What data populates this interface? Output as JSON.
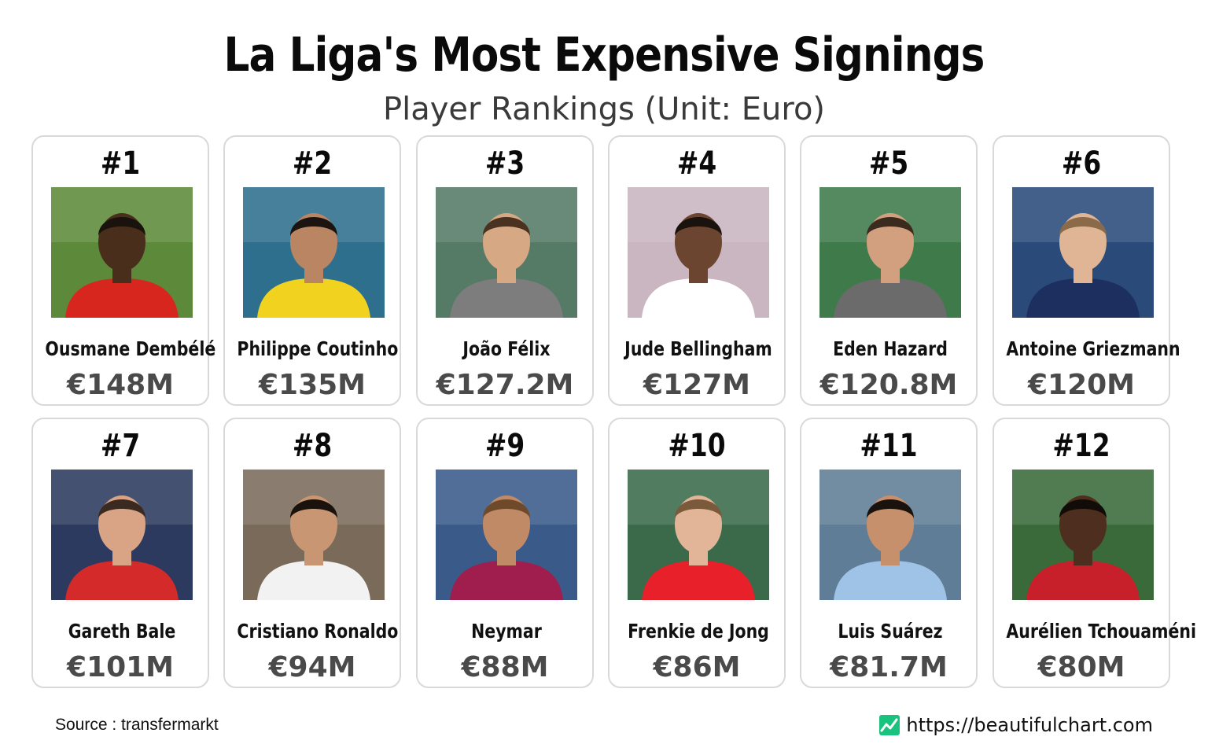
{
  "header": {
    "title": "La Liga's Most Expensive Signings",
    "subtitle": "Player Rankings (Unit: Euro)"
  },
  "colors": {
    "card_border": "#d9d9d9",
    "fee_text": "#4a4a4a",
    "brand_green": "#19c37d"
  },
  "players": [
    {
      "rank": "#1",
      "name": "Ousmane Dembélé",
      "fee": "€148M",
      "kit": "#d7261e",
      "bg": "#5d8a3a",
      "skin": "#4a2e1c",
      "hair": "#1a120c"
    },
    {
      "rank": "#2",
      "name": "Philippe Coutinho",
      "fee": "€135M",
      "kit": "#f1d21f",
      "bg": "#2e6f8e",
      "skin": "#b98563",
      "hair": "#1b1410"
    },
    {
      "rank": "#3",
      "name": "João Félix",
      "fee": "€127.2M",
      "kit": "#7d7d7d",
      "bg": "#557a66",
      "skin": "#d6a884",
      "hair": "#4a3221"
    },
    {
      "rank": "#4",
      "name": "Jude Bellingham",
      "fee": "€127M",
      "kit": "#ffffff",
      "bg": "#c9b6c0",
      "skin": "#6b4530",
      "hair": "#1a120c"
    },
    {
      "rank": "#5",
      "name": "Eden Hazard",
      "fee": "€120.8M",
      "kit": "#6b6b6b",
      "bg": "#3e7a4a",
      "skin": "#d2a07f",
      "hair": "#3b2a1e"
    },
    {
      "rank": "#6",
      "name": "Antoine Griezmann",
      "fee": "€120M",
      "kit": "#1c2f5e",
      "bg": "#2a4a7a",
      "skin": "#e0b596",
      "hair": "#8a6a48"
    },
    {
      "rank": "#7",
      "name": "Gareth Bale",
      "fee": "€101M",
      "kit": "#d42a2a",
      "bg": "#2b3a5e",
      "skin": "#d9a486",
      "hair": "#3a2a20"
    },
    {
      "rank": "#8",
      "name": "Cristiano Ronaldo",
      "fee": "€94M",
      "kit": "#f2f2f2",
      "bg": "#7a6a5a",
      "skin": "#c99674",
      "hair": "#1a120c"
    },
    {
      "rank": "#9",
      "name": "Neymar",
      "fee": "€88M",
      "kit": "#a01e4e",
      "bg": "#3a5a8a",
      "skin": "#c08a66",
      "hair": "#6e4a2a"
    },
    {
      "rank": "#10",
      "name": "Frenkie de Jong",
      "fee": "€86M",
      "kit": "#e8202a",
      "bg": "#3a6a4a",
      "skin": "#e2b598",
      "hair": "#7a5a3a"
    },
    {
      "rank": "#11",
      "name": "Luis Suárez",
      "fee": "€81.7M",
      "kit": "#9fc3e6",
      "bg": "#5f7d96",
      "skin": "#c7906c",
      "hair": "#1a120c"
    },
    {
      "rank": "#12",
      "name": "Aurélien Tchouaméni",
      "fee": "€80M",
      "kit": "#c8202a",
      "bg": "#3a6a3a",
      "skin": "#4e2f1f",
      "hair": "#120c08"
    }
  ],
  "footer": {
    "source": "Source : transfermarkt",
    "url": "https://beautifulchart.com",
    "brand_icon": "chart-line-icon"
  }
}
